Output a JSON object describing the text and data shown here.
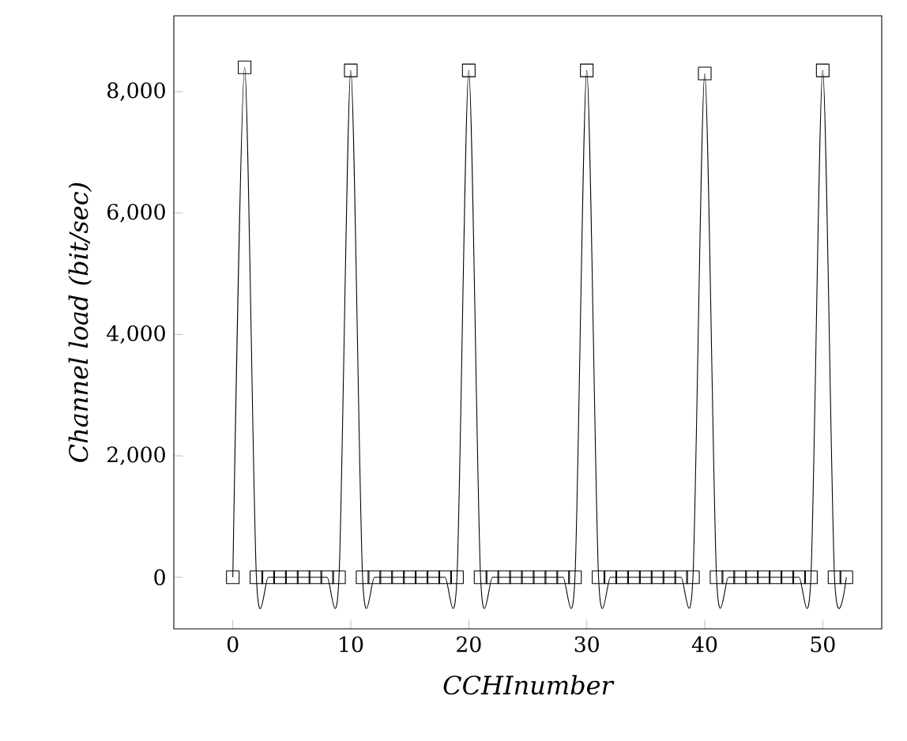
{
  "chart_data": {
    "type": "line",
    "xlabel": "CCHInumber",
    "ylabel": "Channel load (bit/sec)",
    "x": [
      0,
      1,
      2,
      3,
      4,
      5,
      6,
      7,
      8,
      9,
      10,
      11,
      12,
      13,
      14,
      15,
      16,
      17,
      18,
      19,
      20,
      21,
      22,
      23,
      24,
      25,
      26,
      27,
      28,
      29,
      30,
      31,
      32,
      33,
      34,
      35,
      36,
      37,
      38,
      39,
      40,
      41,
      42,
      43,
      44,
      45,
      46,
      47,
      48,
      49,
      50,
      51,
      52
    ],
    "series": [
      {
        "color": "#000000",
        "values": [
          0,
          8400,
          0,
          0,
          0,
          0,
          0,
          0,
          0,
          0,
          8350,
          0,
          0,
          0,
          0,
          0,
          0,
          0,
          0,
          0,
          8350,
          0,
          0,
          0,
          0,
          0,
          0,
          0,
          0,
          0,
          8350,
          0,
          0,
          0,
          0,
          0,
          0,
          0,
          0,
          0,
          8300,
          0,
          0,
          0,
          0,
          0,
          0,
          0,
          0,
          0,
          8350,
          0,
          0
        ]
      }
    ],
    "xlim": [
      -5,
      55
    ],
    "ylim": [
      -850,
      9250
    ],
    "xticks": [
      0,
      10,
      20,
      30,
      40,
      50
    ],
    "yticks": [
      {
        "value": 0,
        "label": "0"
      },
      {
        "value": 2000,
        "label": "2,000"
      },
      {
        "value": 4000,
        "label": "4,000"
      },
      {
        "value": 6000,
        "label": "6,000"
      },
      {
        "value": 8000,
        "label": "8,000"
      }
    ],
    "marker": "square",
    "line_style": "solid"
  }
}
